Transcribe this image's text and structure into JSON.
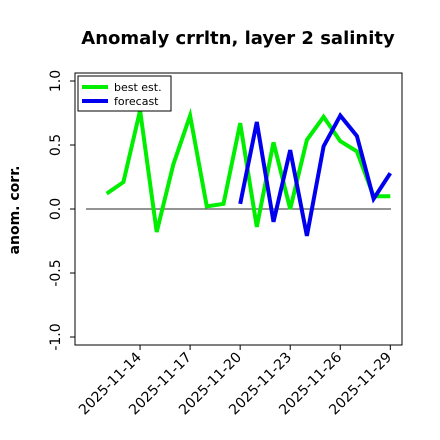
{
  "chart_data": {
    "type": "line",
    "title": "Anomaly crrltn, layer 2 salinity",
    "xlabel": "",
    "ylabel": "anom. corr.",
    "ylim": [
      -1.0,
      1.0
    ],
    "xlim": [
      "2025-11-11",
      "2025-11-30"
    ],
    "yticks": [
      "-1.0",
      "-0.5",
      "0.0",
      "0.5",
      "1.0"
    ],
    "xtick_labels": [
      {
        "label": "2025-11-14",
        "date": "2025-11-14",
        "color": "#000000"
      },
      {
        "label": "2025-11-17",
        "date": "2025-11-17",
        "color": "#000000"
      },
      {
        "label": "2025-11-20",
        "date": "2025-11-20",
        "color": "#1a7a1a"
      },
      {
        "label": "2025-11-23",
        "date": "2025-11-23",
        "color": "#000000"
      },
      {
        "label": "2025-11-26",
        "date": "2025-11-26",
        "color": "#000000"
      },
      {
        "label": "2025-11-29",
        "date": "2025-11-29",
        "color": "#000000"
      }
    ],
    "zero_line": 0.0,
    "legend_position": "top-left",
    "grid": false,
    "series": [
      {
        "name": "best est.",
        "color": "#00ee00",
        "x": [
          "2025-11-12",
          "2025-11-13",
          "2025-11-14",
          "2025-11-15",
          "2025-11-16",
          "2025-11-17",
          "2025-11-18",
          "2025-11-19",
          "2025-11-20",
          "2025-11-21",
          "2025-11-22",
          "2025-11-23",
          "2025-11-24",
          "2025-11-25",
          "2025-11-26",
          "2025-11-27",
          "2025-11-28",
          "2025-11-29"
        ],
        "values": [
          0.12,
          0.21,
          0.77,
          -0.18,
          0.35,
          0.73,
          0.02,
          0.04,
          0.67,
          -0.14,
          0.52,
          0.0,
          0.54,
          0.72,
          0.53,
          0.45,
          0.1,
          0.1
        ]
      },
      {
        "name": "forecast",
        "color": "#0000ee",
        "x": [
          "2025-11-20",
          "2025-11-21",
          "2025-11-22",
          "2025-11-23",
          "2025-11-24",
          "2025-11-25",
          "2025-11-26",
          "2025-11-27",
          "2025-11-28",
          "2025-11-29"
        ],
        "values": [
          0.04,
          0.68,
          -0.1,
          0.46,
          -0.21,
          0.49,
          0.73,
          0.57,
          0.08,
          0.28
        ]
      }
    ]
  }
}
